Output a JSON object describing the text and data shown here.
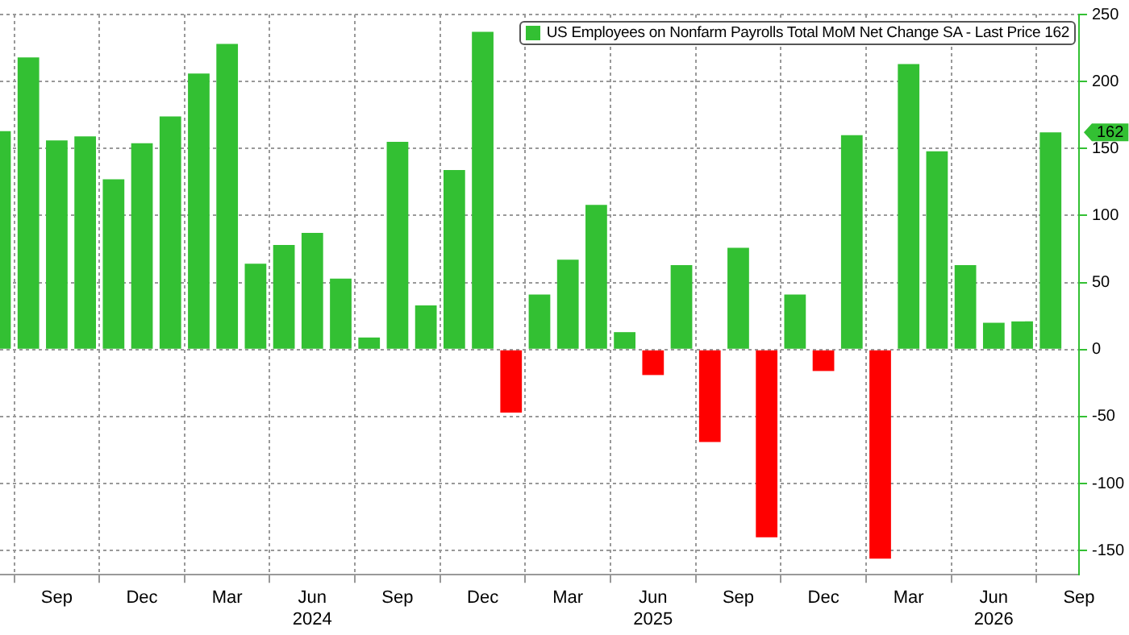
{
  "chart_data": {
    "type": "bar",
    "x": [
      "2023-07",
      "2023-08",
      "2023-09",
      "2023-10",
      "2023-11",
      "2023-12",
      "2024-01",
      "2024-02",
      "2024-03",
      "2024-04",
      "2024-05",
      "2024-06",
      "2024-07",
      "2024-08",
      "2024-09",
      "2024-10",
      "2024-11",
      "2024-12",
      "2025-01",
      "2025-02",
      "2025-03",
      "2025-04",
      "2025-05",
      "2025-06",
      "2025-07",
      "2025-08",
      "2025-09",
      "2025-10",
      "2025-11",
      "2025-12",
      "2026-01",
      "2026-02",
      "2026-03",
      "2026-04",
      "2026-05",
      "2026-06",
      "2026-07",
      "2026-08"
    ],
    "series": [
      {
        "name": "US Employees on Nonfarm Payrolls Total MoM Net Change SA - Last Price 162",
        "color": "#33c033",
        "values": [
          163,
          218,
          156,
          159,
          127,
          154,
          174,
          206,
          228,
          64,
          78,
          87,
          53,
          9,
          155,
          33,
          134,
          237,
          -47,
          41,
          67,
          108,
          13,
          -19,
          63,
          -69,
          76,
          -140,
          41,
          -16,
          160,
          -156,
          213,
          148,
          63,
          20,
          21,
          162
        ],
        "colors": [
          "#33c033",
          "#33c033",
          "#33c033",
          "#33c033",
          "#33c033",
          "#33c033",
          "#33c033",
          "#33c033",
          "#33c033",
          "#33c033",
          "#33c033",
          "#33c033",
          "#33c033",
          "#33c033",
          "#33c033",
          "#33c033",
          "#33c033",
          "#33c033",
          "#ff0000",
          "#33c033",
          "#33c033",
          "#33c033",
          "#33c033",
          "#ff0000",
          "#33c033",
          "#ff0000",
          "#33c033",
          "#ff0000",
          "#33c033",
          "#ff0000",
          "#33c033",
          "#ff0000",
          "#33c033",
          "#33c033",
          "#33c033",
          "#33c033",
          "#33c033",
          "#33c033"
        ]
      }
    ],
    "xlim": [
      "2023-07",
      "2026-09"
    ],
    "xticks": [
      {
        "value": "2023-09",
        "label": "Sep"
      },
      {
        "value": "2023-12",
        "label": "Dec"
      },
      {
        "value": "2024-03",
        "label": "Mar"
      },
      {
        "value": "2024-06",
        "label": "Jun\n2024"
      },
      {
        "value": "2024-09",
        "label": "Sep"
      },
      {
        "value": "2024-12",
        "label": "Dec"
      },
      {
        "value": "2025-03",
        "label": "Mar"
      },
      {
        "value": "2025-06",
        "label": "Jun\n2025"
      },
      {
        "value": "2025-09",
        "label": "Sep"
      },
      {
        "value": "2025-12",
        "label": "Dec"
      },
      {
        "value": "2026-03",
        "label": "Mar"
      },
      {
        "value": "2026-06",
        "label": "Jun\n2026"
      },
      {
        "value": "2026-09",
        "label": "Sep"
      }
    ],
    "ylim": [
      -168,
      250
    ],
    "yticks": [
      -150,
      -100,
      -50,
      0,
      50,
      100,
      150,
      200,
      250
    ],
    "grid": true,
    "legend": "top right",
    "annotations": [
      "162"
    ]
  }
}
